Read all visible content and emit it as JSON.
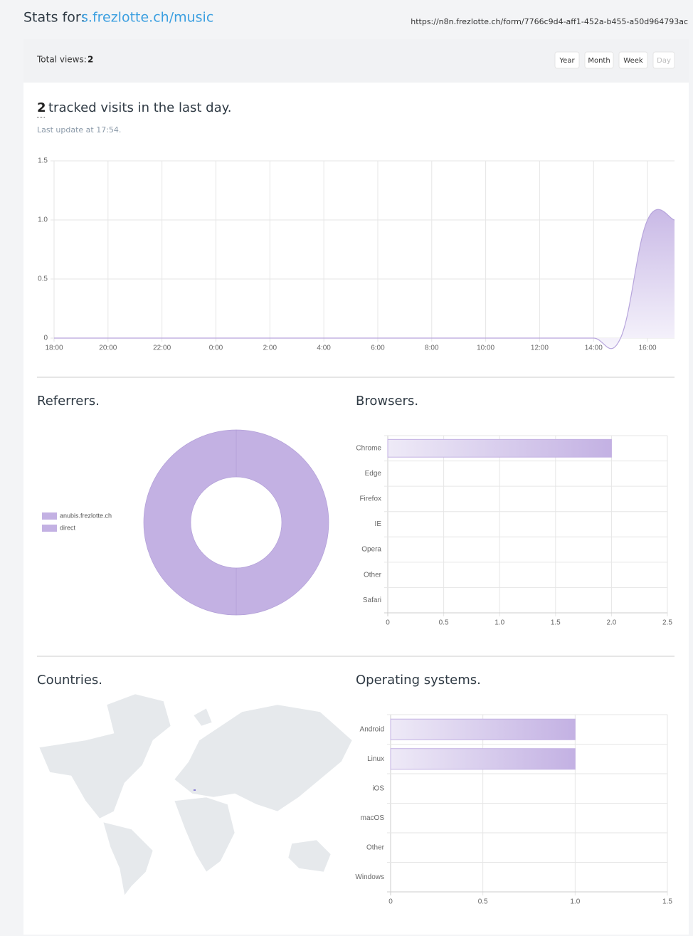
{
  "header": {
    "prefix": "Stats for:",
    "link": "s.frezlotte.ch/music",
    "url": "https://n8n.frezlotte.ch/form/7766c9d4-aff1-452a-b455-a50d964793ac"
  },
  "summary": {
    "label": "Total views:",
    "value": 2
  },
  "buttons": [
    "Year",
    "Month",
    "Week",
    "Day"
  ],
  "visits": {
    "count": 2,
    "text": "tracked visits in the last day.",
    "updated": "Last update at 17:54."
  },
  "map": {
    "title": "Countries."
  },
  "chart_data": [
    {
      "type": "line",
      "color": "#b7a5dc",
      "grid": true,
      "categories": [
        "18:00",
        null,
        "20:00",
        null,
        "22:00",
        null,
        "0:00",
        null,
        "2:00",
        null,
        "4:00",
        null,
        "6:00",
        null,
        "8:00",
        null,
        "10:00",
        null,
        "12:00",
        null,
        "14:00",
        null,
        "16:00",
        null
      ],
      "values": [
        0,
        0,
        0,
        0,
        0,
        0,
        0,
        0,
        0,
        0,
        0,
        0,
        0,
        0,
        0,
        0,
        0,
        0,
        0,
        0,
        0,
        0,
        1,
        1
      ],
      "ylim": [
        0,
        1.5
      ],
      "yticks": [
        0,
        0.5,
        {
          "value": 1,
          "label": "1.0"
        },
        1.5
      ]
    },
    {
      "type": "pie",
      "title": "Referrers.",
      "donut": true,
      "legend": "left",
      "categories": [
        "anubis.frezlotte.ch",
        "direct"
      ],
      "values": [
        1,
        1
      ],
      "colors": [
        "#c3b1e3",
        "#c3b1e3"
      ]
    },
    {
      "type": "hbar",
      "title": "Browsers.",
      "color": "#c3b1e3",
      "grid": true,
      "categories": [
        "Chrome",
        "Edge",
        "Firefox",
        "IE",
        "Opera",
        "Other",
        "Safari"
      ],
      "values": [
        2,
        0,
        0,
        0,
        0,
        0,
        0
      ],
      "xlim": [
        0,
        2.5
      ],
      "xticks": [
        0,
        0.5,
        {
          "value": 1,
          "label": "1.0"
        },
        1.5,
        {
          "value": 2,
          "label": "2.0"
        },
        2.5
      ]
    },
    {
      "type": "hbar",
      "title": "Operating systems.",
      "color": "#c3b1e3",
      "grid": true,
      "categories": [
        "Android",
        "Linux",
        "iOS",
        "macOS",
        "Other",
        "Windows"
      ],
      "values": [
        1,
        1,
        0,
        0,
        0,
        0
      ],
      "xlim": [
        0,
        1.5
      ],
      "xticks": [
        0,
        0.5,
        {
          "value": 1,
          "label": "1.0"
        },
        1.5
      ]
    }
  ]
}
